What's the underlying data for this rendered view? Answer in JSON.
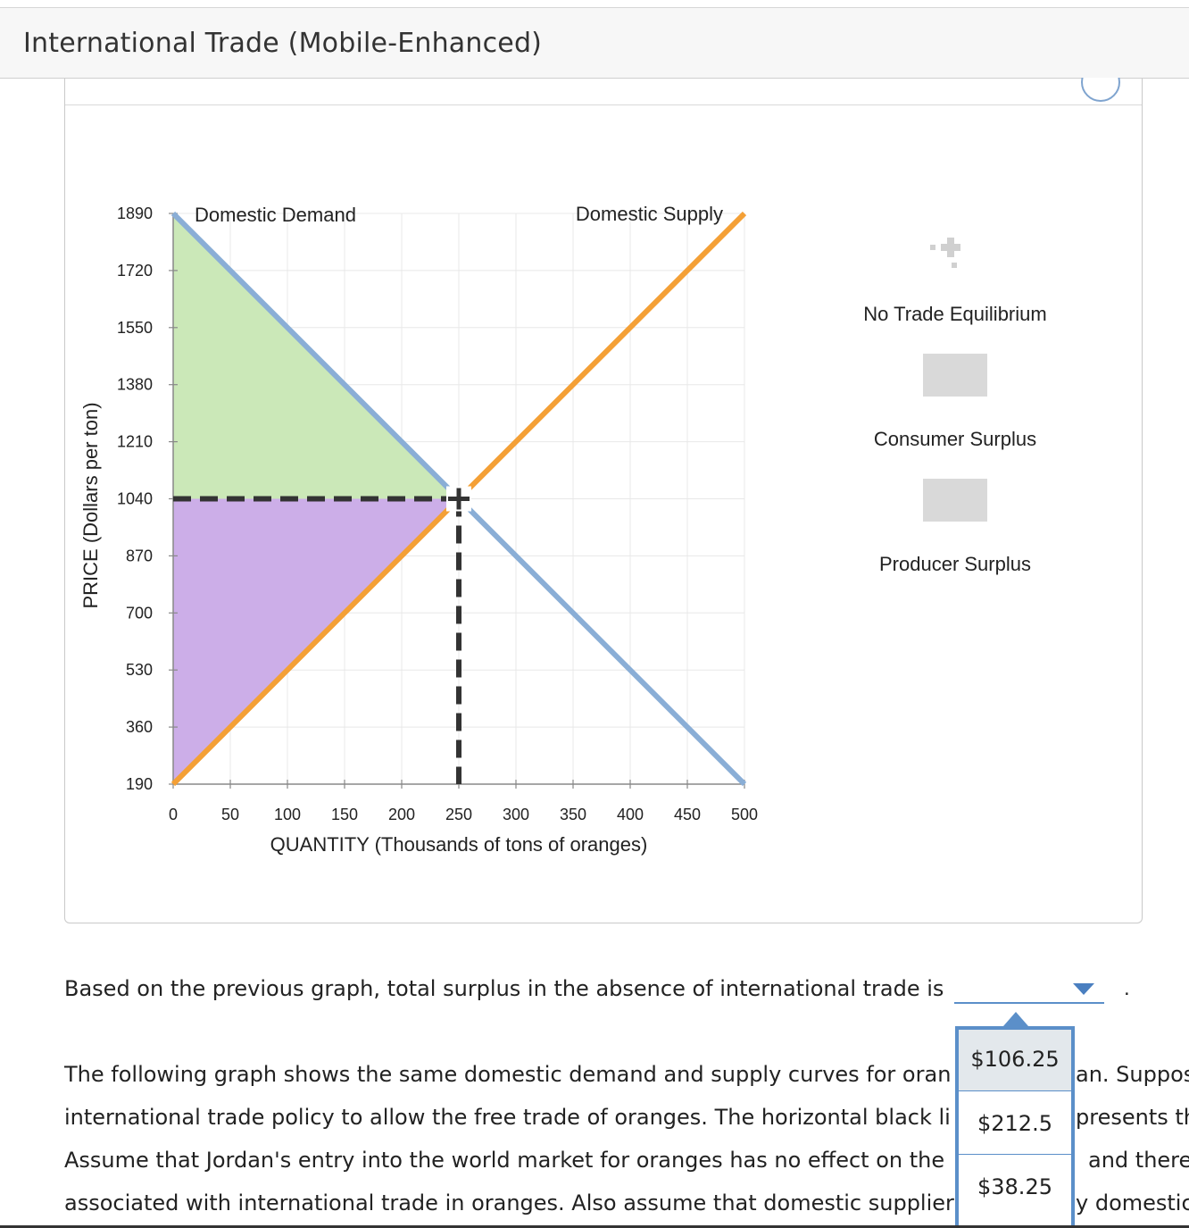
{
  "header": {
    "title": "International Trade (Mobile-Enhanced)"
  },
  "chart_data": {
    "type": "line",
    "xlabel": "QUANTITY (Thousands of tons of oranges)",
    "ylabel": "PRICE (Dollars per ton)",
    "x_ticks": [
      0,
      50,
      100,
      150,
      200,
      250,
      300,
      350,
      400,
      450,
      500
    ],
    "y_ticks": [
      190,
      360,
      530,
      700,
      870,
      1040,
      1210,
      1380,
      1550,
      1720,
      1890
    ],
    "xlim": [
      0,
      500
    ],
    "ylim": [
      190,
      1890
    ],
    "grid": true,
    "series": [
      {
        "name": "Domestic Demand",
        "color": "#8aaed6",
        "points": [
          [
            0,
            1890
          ],
          [
            500,
            190
          ]
        ]
      },
      {
        "name": "Domestic Supply",
        "color": "#f4a036",
        "points": [
          [
            0,
            190
          ],
          [
            500,
            1890
          ]
        ]
      }
    ],
    "equilibrium": {
      "x": 250,
      "y": 1040
    },
    "consumer_surplus": {
      "color": "#cbe8b8",
      "points": [
        [
          0,
          1890
        ],
        [
          250,
          1040
        ],
        [
          0,
          1040
        ]
      ]
    },
    "producer_surplus": {
      "color": "#ccaee8",
      "points": [
        [
          0,
          1040
        ],
        [
          250,
          1040
        ],
        [
          0,
          190
        ]
      ]
    }
  },
  "legend": {
    "items": [
      {
        "label": "No Trade Equilibrium",
        "icon": "plus-icon"
      },
      {
        "label": "Consumer Surplus",
        "icon": "triangle-icon"
      },
      {
        "label": "Producer Surplus",
        "icon": "diamond-icon"
      }
    ]
  },
  "question": {
    "text": "Based on the previous graph, total surplus in the absence of international trade is",
    "period": "."
  },
  "dropdown": {
    "options": [
      "$106.25",
      "$212.5",
      "$38.25"
    ],
    "highlighted_index": 0
  },
  "paragraph": {
    "lines": [
      "The following graph shows the same domestic demand and supply curves for oran",
      "international trade policy to allow the free trade of oranges. The horizontal black li",
      "Assume that Jordan's entry into the world market for oranges has no effect on the",
      "associated with international trade in oranges. Also assume that domestic supplier"
    ],
    "right_fragments": [
      "an. Suppos",
      "presents th",
      "and there",
      "y domestic"
    ]
  }
}
